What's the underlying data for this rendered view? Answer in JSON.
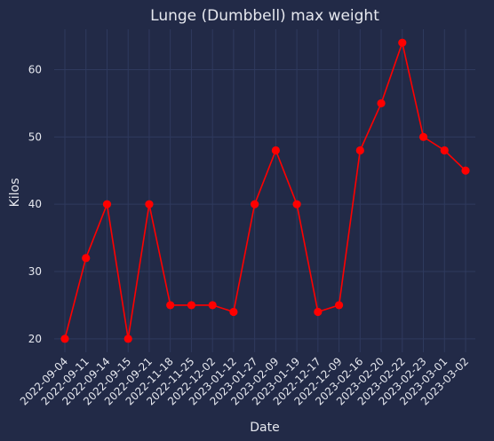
{
  "chart_data": {
    "type": "line",
    "title": "Lunge (Dumbbell) max weight",
    "xlabel": "Date",
    "ylabel": "Kilos",
    "categories": [
      "2022-09-04",
      "2022-09-11",
      "2022-09-14",
      "2022-09-15",
      "2022-09-21",
      "2022-11-18",
      "2022-11-25",
      "2022-12-02",
      "2023-01-12",
      "2023-01-27",
      "2023-02-09",
      "2023-01-19",
      "2022-12-17",
      "2022-12-09",
      "2023-02-16",
      "2023-02-20",
      "2023-02-22",
      "2023-02-23",
      "2023-03-01",
      "2023-03-02"
    ],
    "series": [
      {
        "values": [
          20,
          32,
          40,
          20,
          40,
          25,
          25,
          25,
          24,
          40,
          48,
          40,
          24,
          25,
          48,
          55,
          64,
          50,
          48,
          45
        ],
        "color": "#ff0000"
      }
    ],
    "yticks": [
      20,
      30,
      40,
      50,
      60
    ],
    "ylim": [
      18,
      66
    ],
    "grid": true,
    "colors": {
      "background": "#222a47",
      "grid": "#2f3a5e",
      "text": "#e6e8ef",
      "line": "#ff0000"
    }
  }
}
